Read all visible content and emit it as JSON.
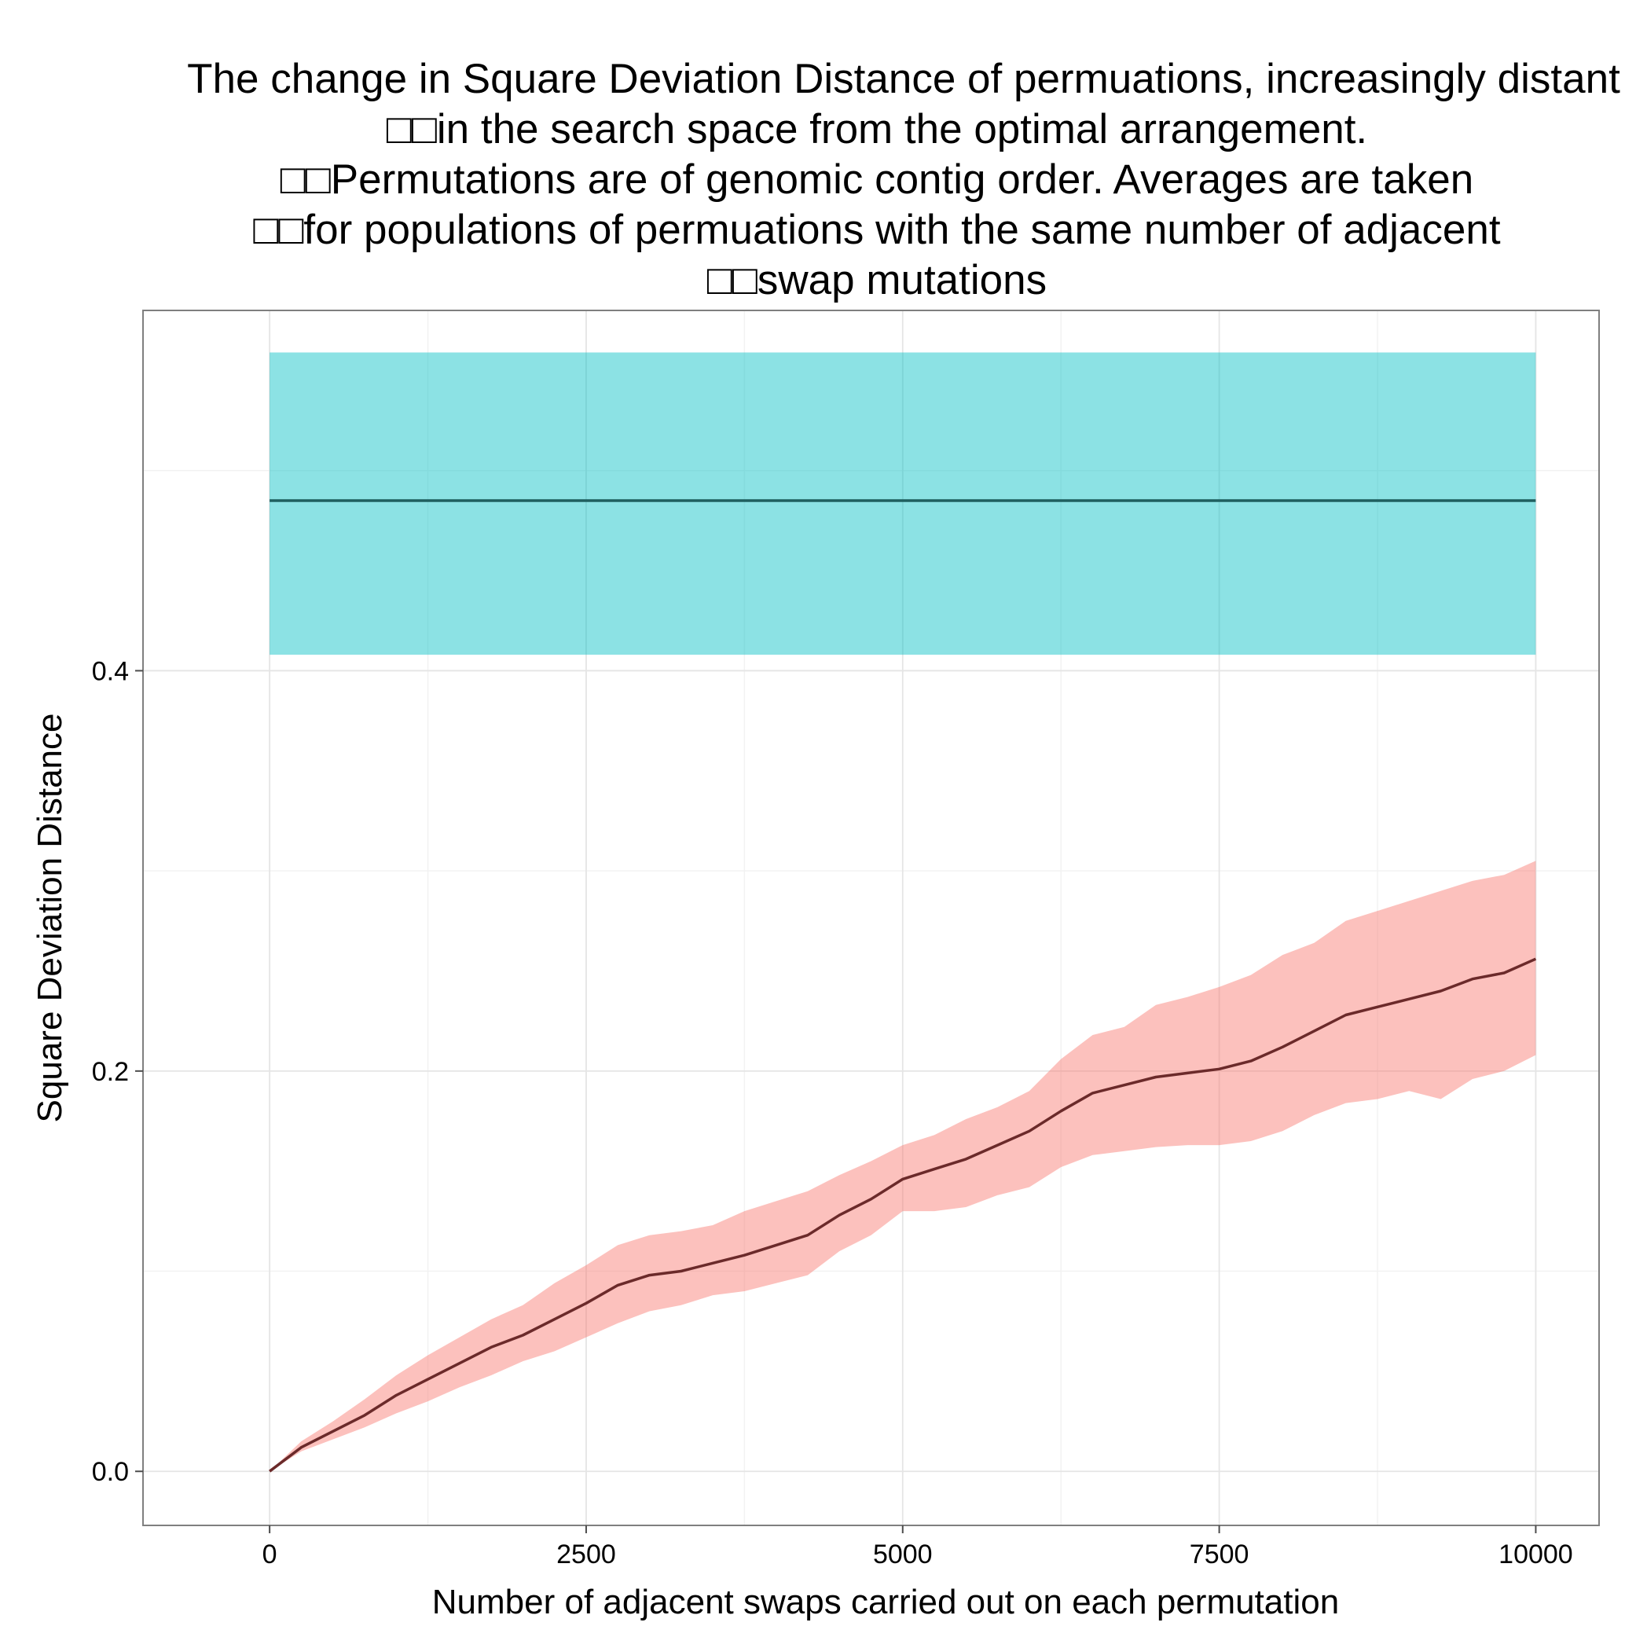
{
  "chart_data": {
    "type": "line",
    "title_lines": [
      "The change in Square Deviation Distance of permuations, increasingly distant",
      "□□in the search space from the optimal arrangement.",
      "□□Permutations are of genomic contig order. Averages are taken",
      "□□for populations of permuations with the same number of adjacent",
      "□□swap mutations"
    ],
    "xlabel": "Number of adjacent swaps carried out on each permutation",
    "ylabel": "Square Deviation Distance",
    "xlim": [
      -1000,
      10500
    ],
    "ylim": [
      -0.027,
      0.58
    ],
    "x_ticks": [
      0,
      2500,
      5000,
      7500,
      10000
    ],
    "x_tick_labels": [
      "0",
      "2500",
      "5000",
      "7500",
      "10000"
    ],
    "y_ticks": [
      0.0,
      0.2,
      0.4
    ],
    "y_tick_labels": [
      "0.0",
      "0.2",
      "0.4"
    ],
    "grid": true,
    "legend": "none",
    "series": [
      {
        "color": "#00BFC4",
        "line_color": "#1f5f5f",
        "x": [
          0,
          10000
        ],
        "mean": [
          0.485,
          0.485
        ],
        "lower": [
          0.408,
          0.408
        ],
        "upper": [
          0.559,
          0.559
        ]
      },
      {
        "color": "#F8766D",
        "line_color": "#6b2a2a",
        "x": [
          0,
          250,
          500,
          750,
          1000,
          1250,
          1500,
          1750,
          2000,
          2250,
          2500,
          2750,
          3000,
          3250,
          3500,
          3750,
          4000,
          4250,
          4500,
          4750,
          5000,
          5250,
          5500,
          5750,
          6000,
          6250,
          6500,
          6750,
          7000,
          7250,
          7500,
          7750,
          8000,
          8250,
          8500,
          8750,
          9000,
          9250,
          9500,
          9750,
          10000
        ],
        "mean": [
          0.0,
          0.012,
          0.02,
          0.028,
          0.038,
          0.046,
          0.054,
          0.062,
          0.068,
          0.076,
          0.084,
          0.093,
          0.098,
          0.1,
          0.104,
          0.108,
          0.113,
          0.118,
          0.128,
          0.136,
          0.146,
          0.151,
          0.156,
          0.163,
          0.17,
          0.18,
          0.189,
          0.193,
          0.197,
          0.199,
          0.201,
          0.205,
          0.212,
          0.22,
          0.228,
          0.232,
          0.236,
          0.24,
          0.246,
          0.249,
          0.256
        ],
        "lower": [
          0.0,
          0.01,
          0.016,
          0.022,
          0.029,
          0.035,
          0.042,
          0.048,
          0.055,
          0.06,
          0.067,
          0.074,
          0.08,
          0.083,
          0.088,
          0.09,
          0.094,
          0.098,
          0.11,
          0.118,
          0.13,
          0.13,
          0.132,
          0.138,
          0.142,
          0.152,
          0.158,
          0.16,
          0.162,
          0.163,
          0.163,
          0.165,
          0.17,
          0.178,
          0.184,
          0.186,
          0.19,
          0.186,
          0.196,
          0.2,
          0.208
        ],
        "upper": [
          0.0,
          0.015,
          0.025,
          0.036,
          0.048,
          0.058,
          0.067,
          0.076,
          0.083,
          0.094,
          0.103,
          0.113,
          0.118,
          0.12,
          0.123,
          0.13,
          0.135,
          0.14,
          0.148,
          0.155,
          0.163,
          0.168,
          0.176,
          0.182,
          0.19,
          0.206,
          0.218,
          0.222,
          0.233,
          0.237,
          0.242,
          0.248,
          0.258,
          0.264,
          0.275,
          0.28,
          0.285,
          0.29,
          0.295,
          0.298,
          0.305
        ]
      }
    ]
  }
}
